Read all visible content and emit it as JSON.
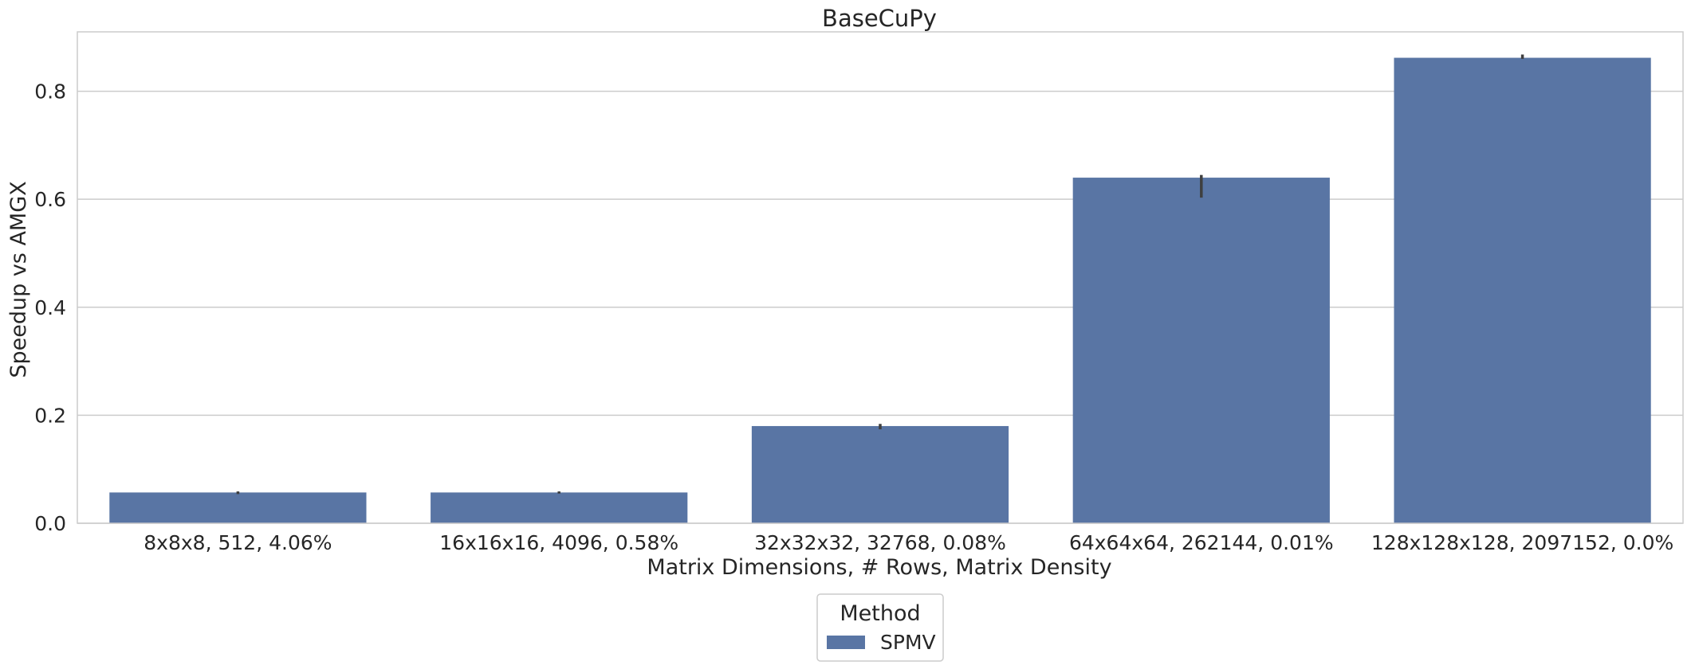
{
  "chart_data": {
    "type": "bar",
    "title": "BaseCuPy",
    "xlabel": "Matrix Dimensions, # Rows, Matrix Density",
    "ylabel": "Speedup vs AMGX",
    "categories": [
      "8x8x8, 512, 4.06%",
      "16x16x16, 4096, 0.58%",
      "32x32x32, 32768, 0.08%",
      "64x64x64, 262144, 0.01%",
      "128x128x128, 2097152, 0.0%"
    ],
    "series": [
      {
        "name": "SPMV",
        "color": "#5975a4",
        "values": [
          0.057,
          0.057,
          0.18,
          0.64,
          0.862
        ],
        "error_low": [
          0.054,
          0.055,
          0.174,
          0.603,
          0.86
        ],
        "error_high": [
          0.059,
          0.059,
          0.184,
          0.645,
          0.868
        ]
      }
    ],
    "ylim": [
      0,
      0.91
    ],
    "yticks": [
      0.0,
      0.2,
      0.4,
      0.6,
      0.8
    ],
    "ytick_labels": [
      "0.0",
      "0.2",
      "0.4",
      "0.6",
      "0.8"
    ],
    "grid": "horizontal",
    "legend": {
      "title": "Method",
      "placement": "below"
    }
  }
}
